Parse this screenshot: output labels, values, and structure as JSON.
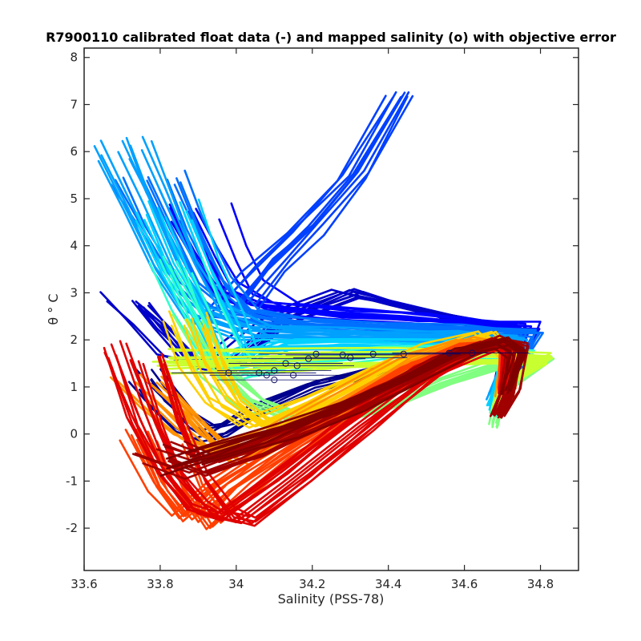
{
  "chart_data": {
    "type": "line",
    "title": "R7900110 calibrated float data (-) and mapped salinity (o) with objective error",
    "xlabel": "Salinity (PSS-78)",
    "ylabel": "θ ° C",
    "xlim": [
      33.6,
      34.9
    ],
    "ylim": [
      -2.9,
      8.2
    ],
    "xticks": [
      "33.6",
      "33.8",
      "34",
      "34.2",
      "34.4",
      "34.6",
      "34.8"
    ],
    "xtick_values": [
      33.6,
      33.8,
      34.0,
      34.2,
      34.4,
      34.6,
      34.8
    ],
    "yticks": [
      "-2",
      "-1",
      "0",
      "1",
      "2",
      "3",
      "4",
      "5",
      "6",
      "7",
      "8"
    ],
    "ytick_values": [
      -2,
      -1,
      0,
      1,
      2,
      3,
      4,
      5,
      6,
      7,
      8
    ],
    "grid": false,
    "colormap": "jet",
    "profile_groups": [
      {
        "color": "#00008f",
        "count": 8,
        "spread": 0.05,
        "path": [
          [
            33.76,
            1.2
          ],
          [
            33.8,
            0.8
          ],
          [
            33.86,
            0.3
          ],
          [
            33.92,
            0.0
          ],
          [
            33.96,
            0.1
          ],
          [
            34.05,
            0.5
          ],
          [
            34.2,
            1.0
          ],
          [
            34.4,
            1.4
          ],
          [
            34.58,
            1.7
          ],
          [
            34.7,
            1.75
          ],
          [
            34.72,
            1.0
          ],
          [
            34.7,
            0.5
          ]
        ]
      },
      {
        "color": "#0000c8",
        "count": 10,
        "spread": 0.08,
        "path": [
          [
            33.72,
            2.8
          ],
          [
            33.78,
            2.3
          ],
          [
            33.86,
            1.6
          ],
          [
            33.95,
            1.4
          ],
          [
            34.1,
            2.4
          ],
          [
            34.3,
            3.0
          ],
          [
            34.45,
            2.7
          ],
          [
            34.6,
            2.4
          ],
          [
            34.74,
            2.2
          ],
          [
            34.72,
            1.7
          ],
          [
            34.7,
            1.0
          ]
        ]
      },
      {
        "color": "#0000ff",
        "count": 12,
        "spread": 0.1,
        "path": [
          [
            33.9,
            4.7
          ],
          [
            33.95,
            3.8
          ],
          [
            34.0,
            3.1
          ],
          [
            34.1,
            2.7
          ],
          [
            34.3,
            2.55
          ],
          [
            34.5,
            2.45
          ],
          [
            34.65,
            2.35
          ],
          [
            34.77,
            2.3
          ],
          [
            34.75,
            1.8
          ],
          [
            34.71,
            1.1
          ]
        ]
      },
      {
        "color": "#0040ff",
        "count": 10,
        "spread": 0.1,
        "path": [
          [
            34.0,
            2.6
          ],
          [
            34.1,
            3.6
          ],
          [
            34.2,
            4.4
          ],
          [
            34.32,
            5.5
          ],
          [
            34.44,
            7.2
          ]
        ]
      },
      {
        "color": "#0070ff",
        "count": 12,
        "spread": 0.1,
        "path": [
          [
            33.76,
            5.4
          ],
          [
            33.82,
            4.4
          ],
          [
            33.9,
            3.2
          ],
          [
            33.98,
            2.6
          ],
          [
            34.15,
            2.35
          ],
          [
            34.4,
            2.25
          ],
          [
            34.6,
            2.2
          ],
          [
            34.76,
            2.15
          ],
          [
            34.74,
            1.7
          ],
          [
            34.7,
            1.0
          ]
        ]
      },
      {
        "color": "#00a0ff",
        "count": 12,
        "spread": 0.09,
        "path": [
          [
            33.7,
            6.1
          ],
          [
            33.76,
            5.0
          ],
          [
            33.84,
            3.6
          ],
          [
            33.92,
            2.6
          ],
          [
            34.05,
            2.2
          ],
          [
            34.3,
            2.1
          ],
          [
            34.55,
            2.05
          ],
          [
            34.73,
            2.0
          ],
          [
            34.72,
            1.5
          ],
          [
            34.68,
            0.8
          ]
        ]
      },
      {
        "color": "#00d0ff",
        "count": 12,
        "spread": 0.08,
        "path": [
          [
            33.82,
            4.8
          ],
          [
            33.88,
            3.6
          ],
          [
            33.95,
            2.5
          ],
          [
            34.0,
            1.6
          ],
          [
            34.1,
            1.9
          ],
          [
            34.3,
            1.95
          ],
          [
            34.55,
            1.9
          ],
          [
            34.72,
            1.85
          ],
          [
            34.71,
            1.3
          ],
          [
            34.68,
            0.6
          ]
        ]
      },
      {
        "color": "#30ffd0",
        "count": 10,
        "spread": 0.07,
        "path": [
          [
            33.84,
            3.6
          ],
          [
            33.9,
            2.6
          ],
          [
            33.96,
            1.7
          ],
          [
            34.02,
            1.3
          ],
          [
            34.15,
            1.55
          ],
          [
            34.4,
            1.7
          ],
          [
            34.62,
            1.75
          ],
          [
            34.76,
            1.7
          ],
          [
            34.72,
            1.2
          ],
          [
            34.68,
            0.4
          ]
        ]
      },
      {
        "color": "#80ff80",
        "count": 10,
        "spread": 0.06,
        "path": [
          [
            33.88,
            2.4
          ],
          [
            33.95,
            1.4
          ],
          [
            34.05,
            0.7
          ],
          [
            34.2,
            0.25
          ],
          [
            34.4,
            0.6
          ],
          [
            34.55,
            1.1
          ],
          [
            34.7,
            1.5
          ],
          [
            34.82,
            1.6
          ],
          [
            34.7,
            0.9
          ],
          [
            34.68,
            0.2
          ]
        ]
      },
      {
        "color": "#c8ff30",
        "count": 12,
        "spread": 0.05,
        "path": [
          [
            33.82,
            1.55
          ],
          [
            34.1,
            1.55
          ],
          [
            34.4,
            1.6
          ],
          [
            34.6,
            1.62
          ],
          [
            34.82,
            1.6
          ],
          [
            34.72,
            1.1
          ],
          [
            34.69,
            0.5
          ]
        ]
      },
      {
        "color": "#ffd000",
        "count": 12,
        "spread": 0.07,
        "path": [
          [
            33.86,
            2.4
          ],
          [
            33.9,
            1.5
          ],
          [
            33.96,
            0.7
          ],
          [
            34.05,
            0.2
          ],
          [
            34.2,
            0.7
          ],
          [
            34.35,
            1.3
          ],
          [
            34.5,
            1.8
          ],
          [
            34.65,
            2.1
          ],
          [
            34.72,
            1.6
          ],
          [
            34.7,
            0.9
          ]
        ]
      },
      {
        "color": "#ff9000",
        "count": 14,
        "spread": 0.08,
        "path": [
          [
            33.74,
            1.0
          ],
          [
            33.82,
            0.4
          ],
          [
            33.9,
            -0.2
          ],
          [
            33.98,
            -0.5
          ],
          [
            34.12,
            0.0
          ],
          [
            34.28,
            0.7
          ],
          [
            34.45,
            1.5
          ],
          [
            34.6,
            1.95
          ],
          [
            34.72,
            1.8
          ],
          [
            34.7,
            0.8
          ]
        ]
      },
      {
        "color": "#ff4000",
        "count": 16,
        "spread": 0.09,
        "path": [
          [
            33.78,
            -0.1
          ],
          [
            33.84,
            -1.2
          ],
          [
            33.9,
            -1.8
          ],
          [
            33.98,
            -1.2
          ],
          [
            34.12,
            -0.4
          ],
          [
            34.3,
            0.5
          ],
          [
            34.48,
            1.4
          ],
          [
            34.62,
            1.85
          ],
          [
            34.72,
            1.9
          ],
          [
            34.71,
            1.0
          ]
        ]
      },
      {
        "color": "#e00000",
        "count": 16,
        "spread": 0.09,
        "path": [
          [
            33.74,
            1.7
          ],
          [
            33.8,
            0.3
          ],
          [
            33.86,
            -0.8
          ],
          [
            33.94,
            -1.6
          ],
          [
            34.0,
            -1.8
          ],
          [
            34.15,
            -0.9
          ],
          [
            34.32,
            0.2
          ],
          [
            34.5,
            1.3
          ],
          [
            34.65,
            1.85
          ],
          [
            34.73,
            1.9
          ],
          [
            34.71,
            0.9
          ]
        ]
      },
      {
        "color": "#a00000",
        "count": 14,
        "spread": 0.07,
        "path": [
          [
            33.8,
            -0.4
          ],
          [
            33.9,
            -0.7
          ],
          [
            34.05,
            -0.3
          ],
          [
            34.22,
            0.3
          ],
          [
            34.4,
            1.0
          ],
          [
            34.56,
            1.6
          ],
          [
            34.68,
            1.95
          ],
          [
            34.74,
            1.85
          ],
          [
            34.72,
            0.9
          ],
          [
            34.69,
            0.4
          ]
        ]
      },
      {
        "color": "#800000",
        "count": 10,
        "spread": 0.06,
        "path": [
          [
            33.86,
            -0.6
          ],
          [
            33.98,
            -0.3
          ],
          [
            34.12,
            0.05
          ],
          [
            34.3,
            0.6
          ],
          [
            34.46,
            1.2
          ],
          [
            34.6,
            1.75
          ],
          [
            34.7,
            1.95
          ],
          [
            34.74,
            1.7
          ],
          [
            34.71,
            0.9
          ]
        ]
      }
    ],
    "mapped_points": [
      [
        33.98,
        1.3
      ],
      [
        34.06,
        1.3
      ],
      [
        34.08,
        1.25
      ],
      [
        34.1,
        1.15
      ],
      [
        34.1,
        1.35
      ],
      [
        34.13,
        1.5
      ],
      [
        34.16,
        1.45
      ],
      [
        34.15,
        1.25
      ],
      [
        34.19,
        1.6
      ],
      [
        34.21,
        1.7
      ],
      [
        34.28,
        1.68
      ],
      [
        34.3,
        1.62
      ],
      [
        34.36,
        1.7
      ],
      [
        34.44,
        1.7
      ],
      [
        34.56,
        1.72
      ],
      [
        34.62,
        1.72
      ]
    ],
    "error_bar_half_width": 0.15
  }
}
